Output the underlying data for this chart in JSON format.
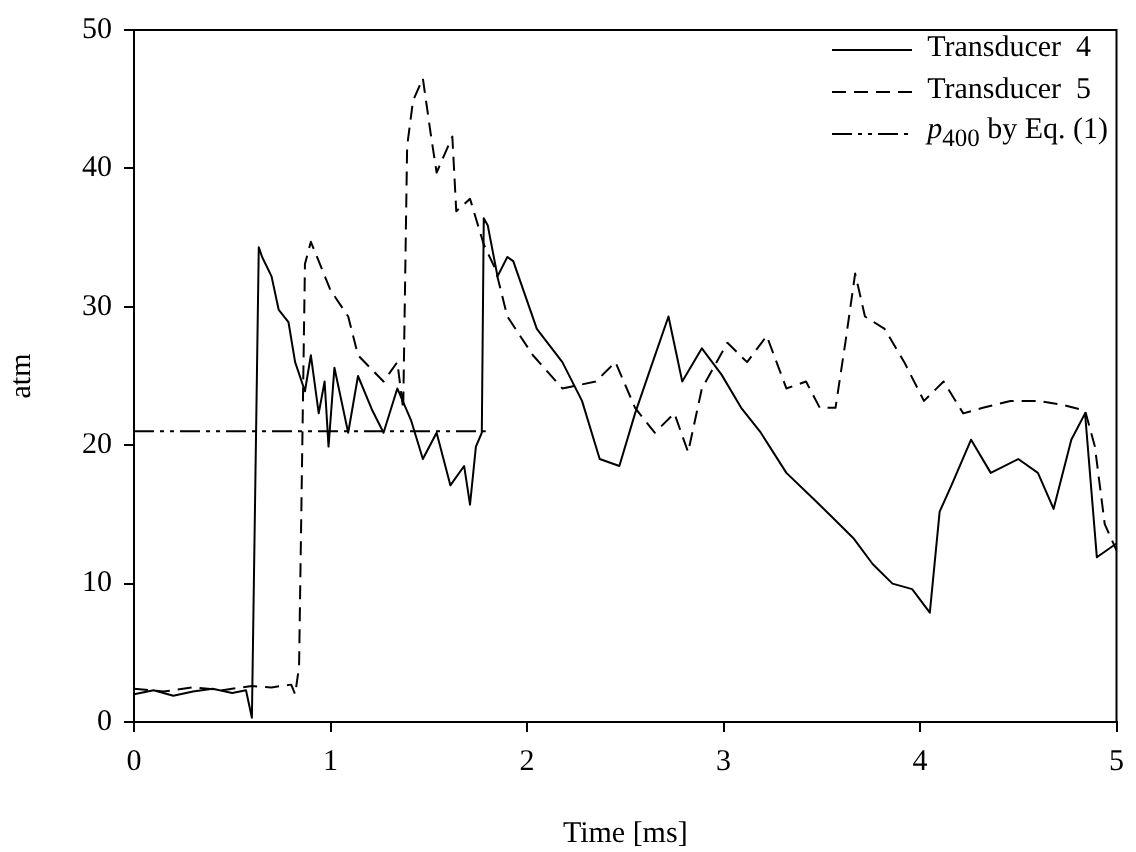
{
  "chart_data": {
    "type": "line",
    "xlabel": "Time [ms]",
    "ylabel": "atm",
    "xlim": [
      0,
      5
    ],
    "xticks": [
      0,
      1,
      2,
      3,
      4,
      5
    ],
    "ylim": [
      0,
      50
    ],
    "yticks": [
      0,
      10,
      20,
      30,
      40,
      50
    ],
    "grid": false,
    "legend": "top right",
    "marker": "none",
    "series": [
      {
        "name": "Transducer  4",
        "color": "#000000",
        "line_style": "solid",
        "x": [
          0,
          0.1,
          0.2,
          0.3,
          0.4,
          0.5,
          0.57,
          0.6,
          0.635,
          0.652,
          0.7,
          0.736,
          0.786,
          0.82,
          0.87,
          0.9,
          0.94,
          0.97,
          0.99,
          1.02,
          1.09,
          1.14,
          1.21,
          1.27,
          1.34,
          1.41,
          1.47,
          1.54,
          1.61,
          1.68,
          1.71,
          1.74,
          1.77,
          1.78,
          1.8,
          1.85,
          1.9,
          1.93,
          2.05,
          2.18,
          2.28,
          2.37,
          2.47,
          2.55,
          2.63,
          2.72,
          2.79,
          2.89,
          2.99,
          3.09,
          3.19,
          3.32,
          3.46,
          3.56,
          3.66,
          3.76,
          3.86,
          3.96,
          4.05,
          4.1,
          4.16,
          4.26,
          4.36,
          4.5,
          4.6,
          4.68,
          4.77,
          4.84,
          4.9,
          5
        ],
        "values": [
          2,
          2.3,
          1.9,
          2.2,
          2.4,
          2.1,
          2.3,
          0.3,
          34.3,
          33.6,
          32.2,
          29.8,
          28.9,
          26,
          23.9,
          26.5,
          22.3,
          24.6,
          19.9,
          25.6,
          20.9,
          25,
          22.6,
          20.9,
          24.1,
          21.8,
          19,
          20.9,
          17.1,
          18.5,
          15.7,
          19.9,
          20.9,
          36.4,
          35.9,
          32.2,
          33.6,
          33.3,
          28.4,
          26,
          23.2,
          19,
          18.5,
          22.3,
          25.6,
          29.3,
          24.6,
          27,
          25.1,
          22.7,
          20.9,
          18,
          16.1,
          14.7,
          13.3,
          11.4,
          10,
          9.6,
          7.9,
          15.2,
          17.1,
          20.4,
          18,
          19,
          18,
          15.4,
          20.4,
          22.3,
          11.9,
          12.9
        ]
      },
      {
        "name": "Transducer  5",
        "color": "#000000",
        "line_style": "dashed",
        "x": [
          0,
          0.15,
          0.3,
          0.45,
          0.6,
          0.7,
          0.8,
          0.82,
          0.84,
          0.87,
          0.9,
          1,
          1.09,
          1.14,
          1.27,
          1.34,
          1.37,
          1.39,
          1.42,
          1.47,
          1.51,
          1.54,
          1.62,
          1.64,
          1.71,
          1.78,
          1.84,
          1.9,
          2.03,
          2.18,
          2.35,
          2.45,
          2.55,
          2.65,
          2.75,
          2.82,
          2.89,
          3.02,
          3.12,
          3.22,
          3.32,
          3.42,
          3.49,
          3.57,
          3.62,
          3.67,
          3.72,
          3.82,
          3.92,
          4.02,
          4.12,
          4.22,
          4.32,
          4.46,
          4.6,
          4.73,
          4.84,
          4.89,
          4.94,
          5
        ],
        "values": [
          2.4,
          2.2,
          2.5,
          2.3,
          2.6,
          2.5,
          2.7,
          2,
          4,
          33.1,
          34.7,
          31.2,
          29.3,
          26.5,
          24.6,
          26,
          22.6,
          41.6,
          44.9,
          46.5,
          42.5,
          39.7,
          42.3,
          36.9,
          37.8,
          34.5,
          32.7,
          29.3,
          26.5,
          24.1,
          24.6,
          26,
          22.7,
          20.9,
          22.3,
          19.5,
          24.1,
          27.4,
          26,
          27.9,
          24.1,
          24.6,
          22.7,
          22.7,
          27.4,
          32.4,
          29.3,
          28.4,
          26,
          23.2,
          24.6,
          22.3,
          22.7,
          23.2,
          23.2,
          22.9,
          22.5,
          19.9,
          14.3,
          12.4
        ]
      },
      {
        "name": "p$_{400}$ by Eq. (1)",
        "color": "#000000",
        "line_style": "dashdot",
        "x": [
          0,
          1.79
        ],
        "values": [
          21,
          21
        ]
      }
    ]
  }
}
